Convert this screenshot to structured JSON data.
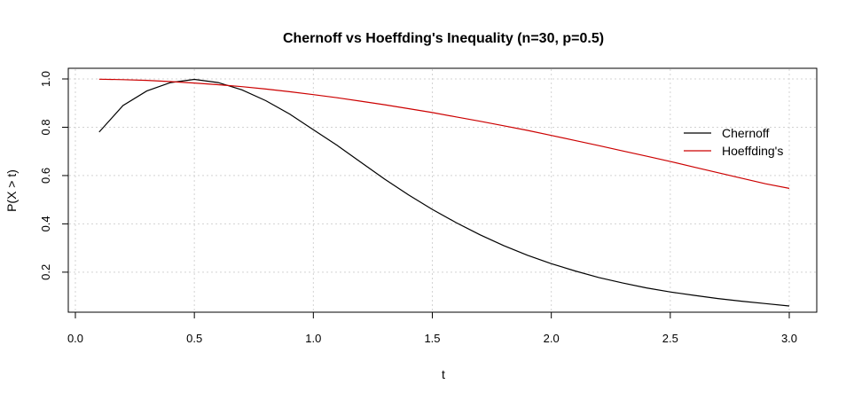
{
  "chart_data": {
    "type": "line",
    "title": "Chernoff vs Hoeffding's Inequality (n=30, p=0.5)",
    "xlabel": "t",
    "ylabel": "P(X > t)",
    "xlim": [
      0,
      3
    ],
    "ylim": [
      0.02,
      1.02
    ],
    "xticks": [
      0.0,
      0.5,
      1.0,
      1.5,
      2.0,
      2.5,
      3.0
    ],
    "xtick_labels": [
      "0.0",
      "0.5",
      "1.0",
      "1.5",
      "2.0",
      "2.5",
      "3.0"
    ],
    "yticks": [
      0.2,
      0.4,
      0.6,
      0.8,
      1.0
    ],
    "ytick_labels": [
      "0.2",
      "0.4",
      "0.6",
      "0.8",
      "1.0"
    ],
    "grid": true,
    "legend_position": "right",
    "series": [
      {
        "name": "Chernoff",
        "color": "#000000",
        "x": [
          0.1,
          0.2,
          0.3,
          0.4,
          0.5,
          0.6,
          0.7,
          0.8,
          0.9,
          1.0,
          1.1,
          1.2,
          1.3,
          1.4,
          1.5,
          1.6,
          1.7,
          1.8,
          1.9,
          2.0,
          2.1,
          2.2,
          2.3,
          2.4,
          2.5,
          2.6,
          2.7,
          2.8,
          2.9,
          3.0
        ],
        "values": [
          0.78,
          0.89,
          0.95,
          0.985,
          0.998,
          0.985,
          0.955,
          0.91,
          0.855,
          0.79,
          0.725,
          0.655,
          0.585,
          0.52,
          0.46,
          0.405,
          0.355,
          0.31,
          0.27,
          0.235,
          0.205,
          0.178,
          0.155,
          0.135,
          0.118,
          0.104,
          0.091,
          0.08,
          0.07,
          0.06
        ]
      },
      {
        "name": "Hoeffding's",
        "color": "#cc0000",
        "x": [
          0.1,
          0.2,
          0.3,
          0.4,
          0.5,
          0.6,
          0.7,
          0.8,
          0.9,
          1.0,
          1.1,
          1.2,
          1.3,
          1.4,
          1.5,
          1.6,
          1.7,
          1.8,
          1.9,
          2.0,
          2.1,
          2.2,
          2.3,
          2.4,
          2.5,
          2.6,
          2.7,
          2.8,
          2.9,
          3.0
        ],
        "values": [
          0.999,
          0.997,
          0.994,
          0.989,
          0.983,
          0.976,
          0.968,
          0.958,
          0.947,
          0.935,
          0.922,
          0.908,
          0.893,
          0.877,
          0.861,
          0.843,
          0.825,
          0.806,
          0.787,
          0.766,
          0.745,
          0.724,
          0.702,
          0.68,
          0.658,
          0.635,
          0.612,
          0.589,
          0.566,
          0.547
        ]
      }
    ]
  }
}
